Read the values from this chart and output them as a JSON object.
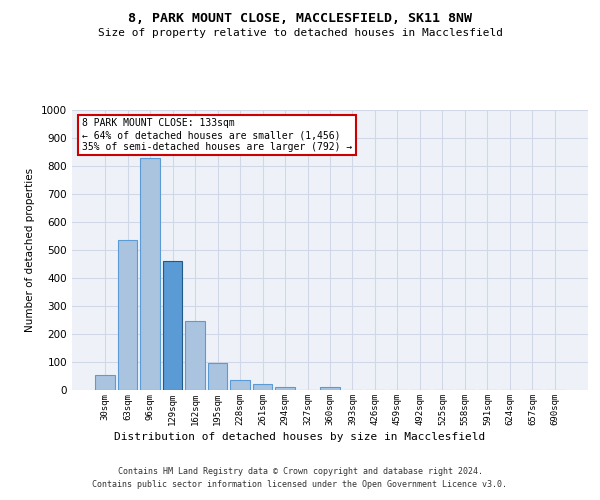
{
  "title": "8, PARK MOUNT CLOSE, MACCLESFIELD, SK11 8NW",
  "subtitle": "Size of property relative to detached houses in Macclesfield",
  "xlabel": "Distribution of detached houses by size in Macclesfield",
  "ylabel": "Number of detached properties",
  "footer_line1": "Contains HM Land Registry data © Crown copyright and database right 2024.",
  "footer_line2": "Contains public sector information licensed under the Open Government Licence v3.0.",
  "bar_labels": [
    "30sqm",
    "63sqm",
    "96sqm",
    "129sqm",
    "162sqm",
    "195sqm",
    "228sqm",
    "261sqm",
    "294sqm",
    "327sqm",
    "360sqm",
    "393sqm",
    "426sqm",
    "459sqm",
    "492sqm",
    "525sqm",
    "558sqm",
    "591sqm",
    "624sqm",
    "657sqm",
    "690sqm"
  ],
  "bar_values": [
    55,
    535,
    830,
    460,
    245,
    98,
    37,
    22,
    12,
    0,
    10,
    0,
    0,
    0,
    0,
    0,
    0,
    0,
    0,
    0,
    0
  ],
  "bar_color": "#aac4e0",
  "bar_edge_color": "#5b9bd5",
  "highlight_bar_index": 3,
  "highlight_bar_color": "#5b9bd5",
  "highlight_bar_edge_color": "#1f5a8a",
  "ylim": [
    0,
    1000
  ],
  "yticks": [
    0,
    100,
    200,
    300,
    400,
    500,
    600,
    700,
    800,
    900,
    1000
  ],
  "annotation_text": "8 PARK MOUNT CLOSE: 133sqm\n← 64% of detached houses are smaller (1,456)\n35% of semi-detached houses are larger (792) →",
  "annotation_box_color": "#ffffff",
  "annotation_box_edge_color": "#cc0000",
  "grid_color": "#d0d8e8",
  "background_color": "#eef2f8",
  "fig_width": 6.0,
  "fig_height": 5.0,
  "dpi": 100
}
